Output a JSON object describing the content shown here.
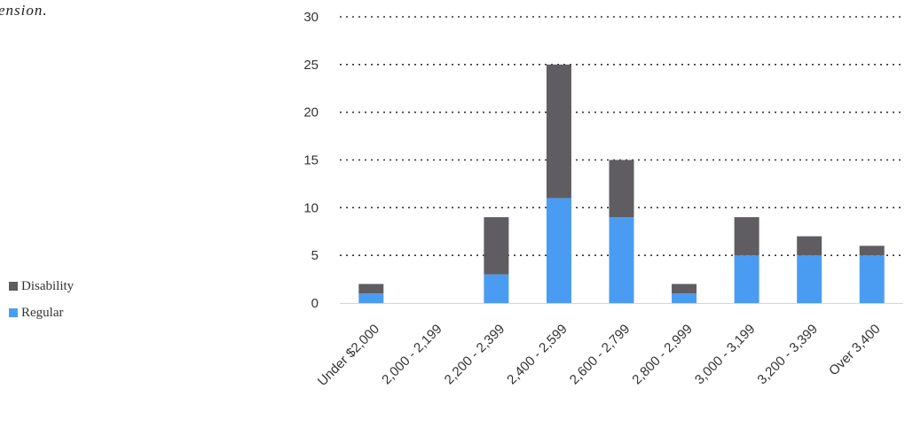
{
  "caption_fragment": "ension.",
  "colors": {
    "disability": "#5f5d62",
    "regular": "#4a9cf2",
    "grid": "#333333",
    "text": "#333333"
  },
  "chart_data": {
    "type": "bar",
    "stacked": true,
    "title": "",
    "xlabel": "",
    "ylabel": "",
    "ylim": [
      0,
      30
    ],
    "yticks": [
      0,
      5,
      10,
      15,
      20,
      25,
      30
    ],
    "grid": "dotted horizontal",
    "legend_position": "left",
    "categories": [
      "Under $2,000",
      "2,000 - 2,199",
      "2,200 - 2,399",
      "2,400 - 2,599",
      "2,600 - 2,799",
      "2,800 - 2,999",
      "3,000 - 3,199",
      "3,200 - 3,399",
      "Over 3,400"
    ],
    "series": [
      {
        "name": "Regular",
        "values": [
          1,
          0,
          3,
          11,
          9,
          1,
          5,
          5,
          5
        ]
      },
      {
        "name": "Disability",
        "values": [
          1,
          0,
          6,
          14,
          6,
          1,
          4,
          2,
          1
        ]
      }
    ],
    "legend": [
      "Disability",
      "Regular"
    ]
  }
}
